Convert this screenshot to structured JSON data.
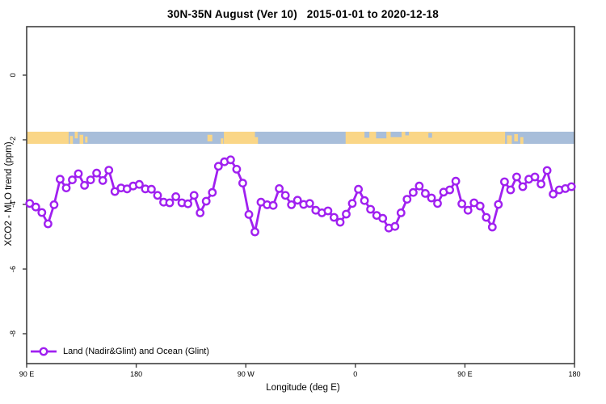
{
  "title": "30N-35N August (Ver 10)   2015-01-01 to 2020-12-18",
  "colors": {
    "line": "#A020F0",
    "marker_fill": "#FFFFFF",
    "ocean": "#A8BEDA",
    "land": "#FAD687",
    "frame": "#3F3F3F",
    "text": "#000000",
    "background": "#FFFFFF"
  },
  "chart_data": {
    "type": "line",
    "title": "30N-35N August (Ver 10)   2015-01-01 to 2020-12-18",
    "xlabel": "Longitude (deg E)",
    "ylabel": "XCO2 - MLO trend (ppm)",
    "legend_position": "bottom-left-inside",
    "grid": false,
    "x_ticks": [
      {
        "label": "90 E",
        "lon": 90
      },
      {
        "label": "180",
        "lon": 180
      },
      {
        "label": "90 W",
        "lon": 270
      },
      {
        "label": "0",
        "lon": 360
      },
      {
        "label": "90 E",
        "lon": 450
      },
      {
        "label": "180",
        "lon": 540
      }
    ],
    "y_ticks": [
      0,
      -2,
      -4,
      -6,
      -8
    ],
    "xlim_deg": [
      90,
      540
    ],
    "ylim": [
      -8.93,
      1.5
    ],
    "x_start_lon": 92.5,
    "x_step_deg": 5,
    "series": [
      {
        "name": "Land (Nadir&Glint) and Ocean (Glint)",
        "values": [
          -3.97,
          -4.08,
          -4.25,
          -4.6,
          -4.01,
          -3.22,
          -3.49,
          -3.24,
          -3.05,
          -3.41,
          -3.24,
          -3.03,
          -3.26,
          -2.94,
          -3.6,
          -3.49,
          -3.52,
          -3.43,
          -3.38,
          -3.52,
          -3.53,
          -3.72,
          -3.93,
          -3.95,
          -3.76,
          -3.95,
          -3.98,
          -3.72,
          -4.26,
          -3.9,
          -3.63,
          -2.82,
          -2.68,
          -2.62,
          -2.91,
          -3.34,
          -4.31,
          -4.85,
          -3.93,
          -4.01,
          -4.03,
          -3.51,
          -3.72,
          -4.01,
          -3.87,
          -4.0,
          -3.97,
          -4.18,
          -4.26,
          -4.2,
          -4.4,
          -4.55,
          -4.3,
          -3.97,
          -3.53,
          -3.88,
          -4.15,
          -4.34,
          -4.43,
          -4.73,
          -4.68,
          -4.26,
          -3.84,
          -3.63,
          -3.43,
          -3.66,
          -3.8,
          -3.97,
          -3.62,
          -3.55,
          -3.28,
          -3.98,
          -4.18,
          -3.95,
          -4.05,
          -4.4,
          -4.7,
          -4.0,
          -3.3,
          -3.55,
          -3.15,
          -3.45,
          -3.22,
          -3.15,
          -3.37,
          -2.95,
          -3.68,
          -3.55,
          -3.51,
          -3.45
        ]
      }
    ],
    "legend": [
      {
        "label": "Land (Nadir&Glint) and Ocean (Glint)",
        "color": "#A020F0"
      }
    ],
    "map_strip": {
      "description": "world-map latitude band 30N-35N drawn across plot at y value -2",
      "value_top": -1.75,
      "value_bottom": -2.125,
      "ocean_color": "#A8BEDA",
      "land_color": "#FAD687",
      "land_segments_deg": [
        {
          "from": 90,
          "to": 124.5
        },
        {
          "from": 125.5,
          "to": 128,
          "y0": 0.35,
          "y1": 1
        },
        {
          "from": 129.5,
          "to": 132,
          "y0": 0,
          "y1": 0.55
        },
        {
          "from": 133.5,
          "to": 136.5,
          "y0": 0.25,
          "y1": 1
        },
        {
          "from": 138,
          "to": 140,
          "y0": 0.4,
          "y1": 0.9
        },
        {
          "from": 238.5,
          "to": 242.5,
          "y0": 0.25,
          "y1": 0.8
        },
        {
          "from": 249.5,
          "to": 251.5,
          "y0": 0.55,
          "y1": 1
        },
        {
          "from": 252,
          "to": 277.5
        },
        {
          "from": 277.5,
          "to": 280,
          "y0": 0.45,
          "y1": 1
        },
        {
          "from": 352,
          "to": 483
        },
        {
          "from": 484.5,
          "to": 488.5,
          "y0": 0.3,
          "y1": 1
        },
        {
          "from": 490.5,
          "to": 493.5,
          "y0": 0.2,
          "y1": 0.8
        },
        {
          "from": 495.5,
          "to": 498,
          "y0": 0.45,
          "y1": 1
        }
      ],
      "sea_overlays_deg": [
        {
          "from": 367.5,
          "to": 371.5,
          "y0": 0,
          "y1": 0.5
        },
        {
          "from": 377,
          "to": 385.5,
          "y0": 0,
          "y1": 0.55
        },
        {
          "from": 389,
          "to": 398,
          "y0": 0,
          "y1": 0.45
        },
        {
          "from": 401,
          "to": 404,
          "y0": 0,
          "y1": 0.3
        },
        {
          "from": 420,
          "to": 423,
          "y0": 0.1,
          "y1": 0.5
        }
      ]
    }
  }
}
